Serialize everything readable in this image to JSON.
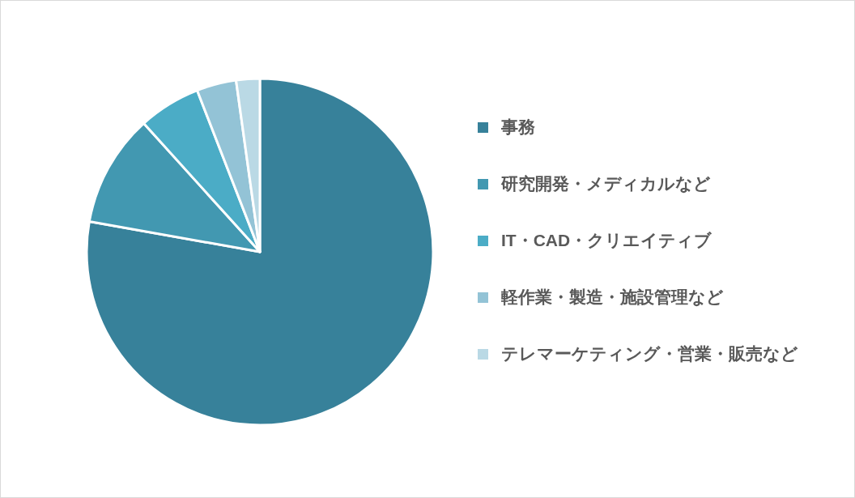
{
  "chart_data": {
    "type": "pie",
    "categories": [
      "事務",
      "研究開発・メディカルなど",
      "IT・CAD・クリエイティブ",
      "軽作業・製造・施設管理など",
      "テレマーケティング・営業・販売など"
    ],
    "values": [
      77.8,
      10.5,
      5.8,
      3.7,
      2.2
    ],
    "colors": [
      "#37819a",
      "#4298b1",
      "#4bacc6",
      "#93c3d6",
      "#bad9e5"
    ],
    "legend": "right"
  }
}
